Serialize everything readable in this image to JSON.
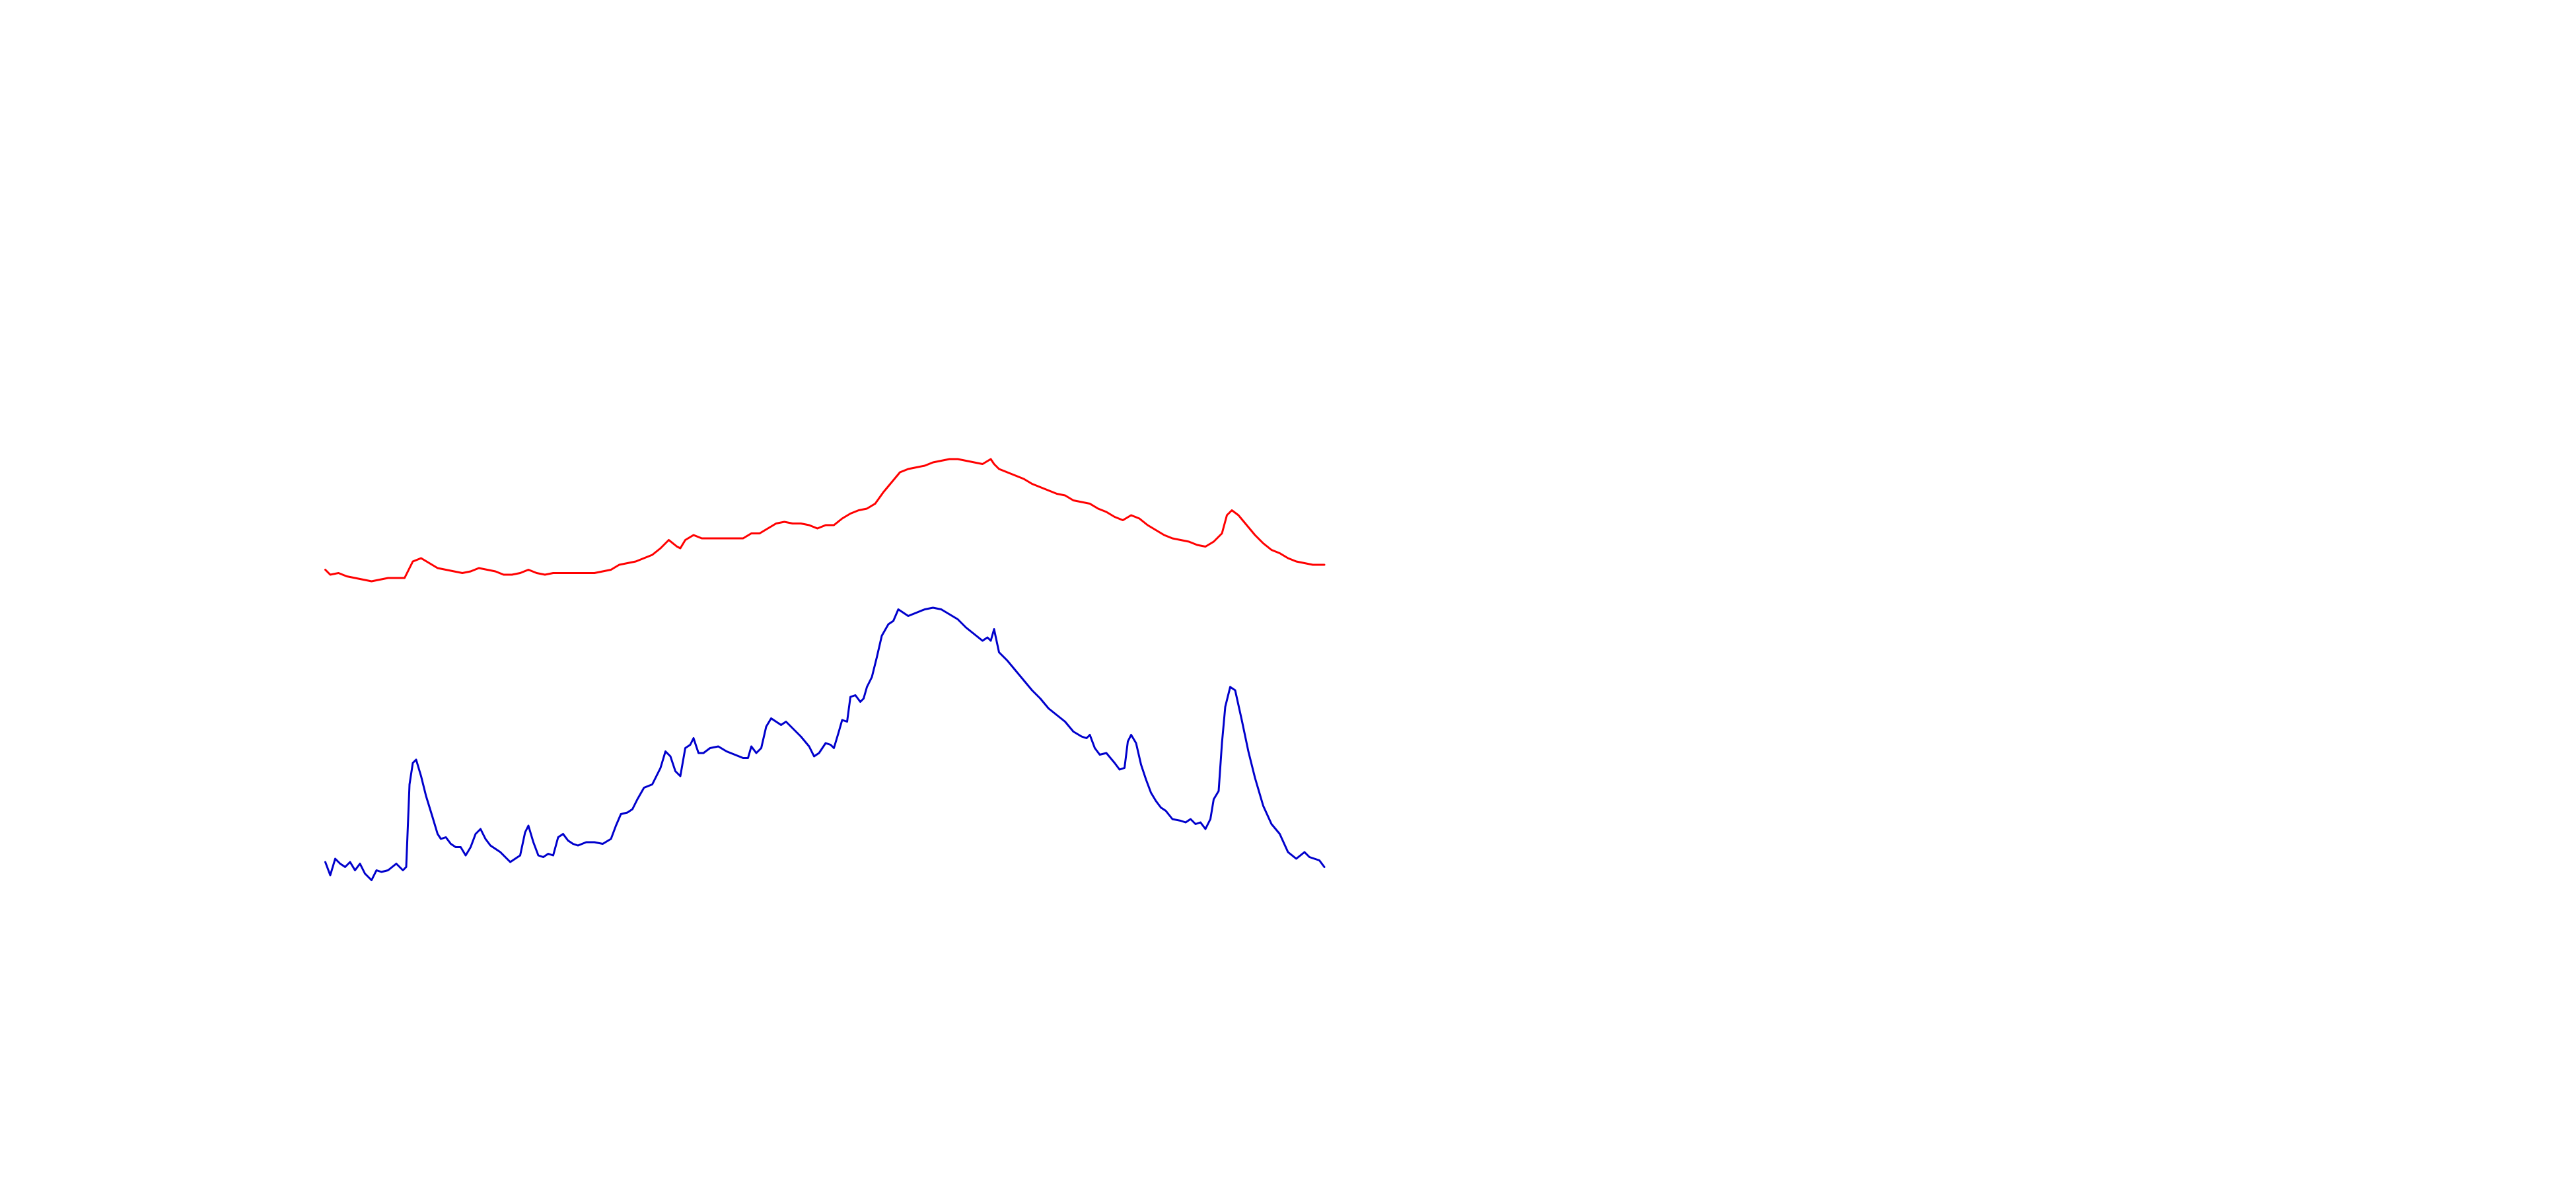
{
  "chart_data": {
    "type": "line",
    "xlim": [
      0,
      1560
    ],
    "ylim": [
      0,
      720
    ],
    "series": [
      {
        "color": "#ff0000",
        "x": [
          197,
          200,
          205,
          210,
          215,
          220,
          225,
          230,
          235,
          240,
          245,
          250,
          255,
          260,
          265,
          270,
          275,
          280,
          285,
          290,
          295,
          300,
          305,
          310,
          315,
          320,
          325,
          330,
          335,
          340,
          350,
          360,
          365,
          370,
          375,
          380,
          385,
          390,
          395,
          400,
          405,
          410,
          412,
          415,
          420,
          425,
          440,
          450,
          455,
          460,
          465,
          470,
          475,
          480,
          485,
          490,
          495,
          500,
          505,
          510,
          515,
          520,
          525,
          530,
          535,
          540,
          545,
          550,
          555,
          560,
          565,
          570,
          575,
          580,
          585,
          590,
          595,
          600,
          602,
          605,
          610,
          615,
          620,
          625,
          630,
          635,
          640,
          645,
          650,
          655,
          660,
          665,
          670,
          675,
          680,
          685,
          690,
          695,
          700,
          705,
          710,
          715,
          720,
          725,
          730,
          735,
          740,
          743,
          746,
          750,
          755,
          760,
          765,
          770,
          775,
          780,
          785,
          790,
          795,
          802
        ],
        "values": [
          375,
          372,
          373,
          371,
          370,
          369,
          368,
          369,
          370,
          370,
          370,
          380,
          382,
          379,
          376,
          375,
          374,
          373,
          374,
          376,
          375,
          374,
          372,
          372,
          373,
          375,
          373,
          372,
          373,
          373,
          373,
          373,
          374,
          375,
          378,
          379,
          380,
          382,
          384,
          388,
          393,
          389,
          388,
          393,
          396,
          394,
          394,
          394,
          397,
          397,
          400,
          403,
          404,
          403,
          403,
          402,
          400,
          402,
          402,
          406,
          409,
          411,
          412,
          415,
          422,
          428,
          434,
          436,
          437,
          438,
          440,
          441,
          442,
          442,
          441,
          440,
          439,
          442,
          439,
          436,
          434,
          432,
          430,
          427,
          425,
          423,
          421,
          420,
          417,
          416,
          415,
          412,
          410,
          407,
          405,
          408,
          406,
          402,
          399,
          396,
          394,
          393,
          392,
          390,
          389,
          392,
          397,
          408,
          411,
          408,
          402,
          396,
          391,
          387,
          385,
          382,
          380,
          379,
          378,
          378
        ]
      },
      {
        "color": "#0000cc",
        "x": [
          197,
          200,
          203,
          206,
          209,
          212,
          215,
          218,
          221,
          225,
          228,
          231,
          235,
          240,
          244,
          246,
          248,
          250,
          252,
          255,
          258,
          262,
          265,
          267,
          270,
          273,
          276,
          279,
          282,
          285,
          288,
          291,
          294,
          297,
          300,
          303,
          306,
          309,
          312,
          315,
          318,
          320,
          323,
          326,
          329,
          332,
          335,
          338,
          341,
          344,
          347,
          350,
          355,
          360,
          365,
          370,
          373,
          376,
          380,
          383,
          386,
          390,
          395,
          400,
          403,
          406,
          409,
          412,
          415,
          418,
          420,
          423,
          426,
          430,
          435,
          440,
          445,
          450,
          453,
          455,
          458,
          461,
          464,
          467,
          470,
          473,
          476,
          480,
          485,
          490,
          493,
          496,
          500,
          503,
          505,
          508,
          510,
          513,
          515,
          518,
          521,
          523,
          525,
          528,
          531,
          534,
          538,
          541,
          544,
          547,
          550,
          555,
          560,
          565,
          570,
          575,
          580,
          585,
          590,
          595,
          598,
          600,
          602,
          605,
          610,
          615,
          620,
          625,
          630,
          635,
          640,
          645,
          650,
          655,
          658,
          660,
          663,
          666,
          670,
          675,
          678,
          681,
          683,
          685,
          688,
          691,
          694,
          697,
          700,
          703,
          706,
          710,
          715,
          718,
          721,
          724,
          727,
          730,
          733,
          735,
          738,
          740,
          742,
          745,
          748,
          752,
          756,
          760,
          765,
          770,
          775,
          780,
          785,
          790,
          793,
          796,
          799,
          802
        ],
        "values": [
          198,
          190,
          200,
          197,
          195,
          198,
          193,
          197,
          191,
          187,
          193,
          192,
          193,
          197,
          193,
          195,
          245,
          258,
          260,
          250,
          238,
          225,
          215,
          212,
          213,
          209,
          207,
          207,
          202,
          207,
          215,
          218,
          212,
          208,
          206,
          204,
          201,
          198,
          200,
          202,
          216,
          220,
          210,
          202,
          201,
          203,
          202,
          213,
          215,
          211,
          209,
          208,
          210,
          210,
          209,
          212,
          220,
          227,
          228,
          230,
          236,
          243,
          245,
          255,
          265,
          262,
          253,
          250,
          267,
          269,
          273,
          264,
          264,
          267,
          268,
          265,
          263,
          261,
          261,
          268,
          264,
          267,
          280,
          285,
          283,
          281,
          283,
          279,
          274,
          268,
          262,
          264,
          270,
          269,
          267,
          277,
          284,
          283,
          298,
          299,
          295,
          297,
          304,
          310,
          322,
          335,
          342,
          344,
          351,
          349,
          347,
          349,
          351,
          352,
          351,
          348,
          345,
          340,
          336,
          332,
          334,
          332,
          339,
          325,
          320,
          314,
          308,
          302,
          297,
          291,
          287,
          283,
          277,
          274,
          273,
          275,
          267,
          263,
          264,
          258,
          254,
          255,
          271,
          275,
          270,
          257,
          248,
          240,
          235,
          231,
          229,
          224,
          223,
          222,
          224,
          221,
          222,
          218,
          224,
          236,
          241,
          270,
          292,
          304,
          302,
          284,
          265,
          249,
          232,
          221,
          215,
          204,
          200,
          204,
          201,
          200,
          199,
          195
        ]
      }
    ]
  }
}
